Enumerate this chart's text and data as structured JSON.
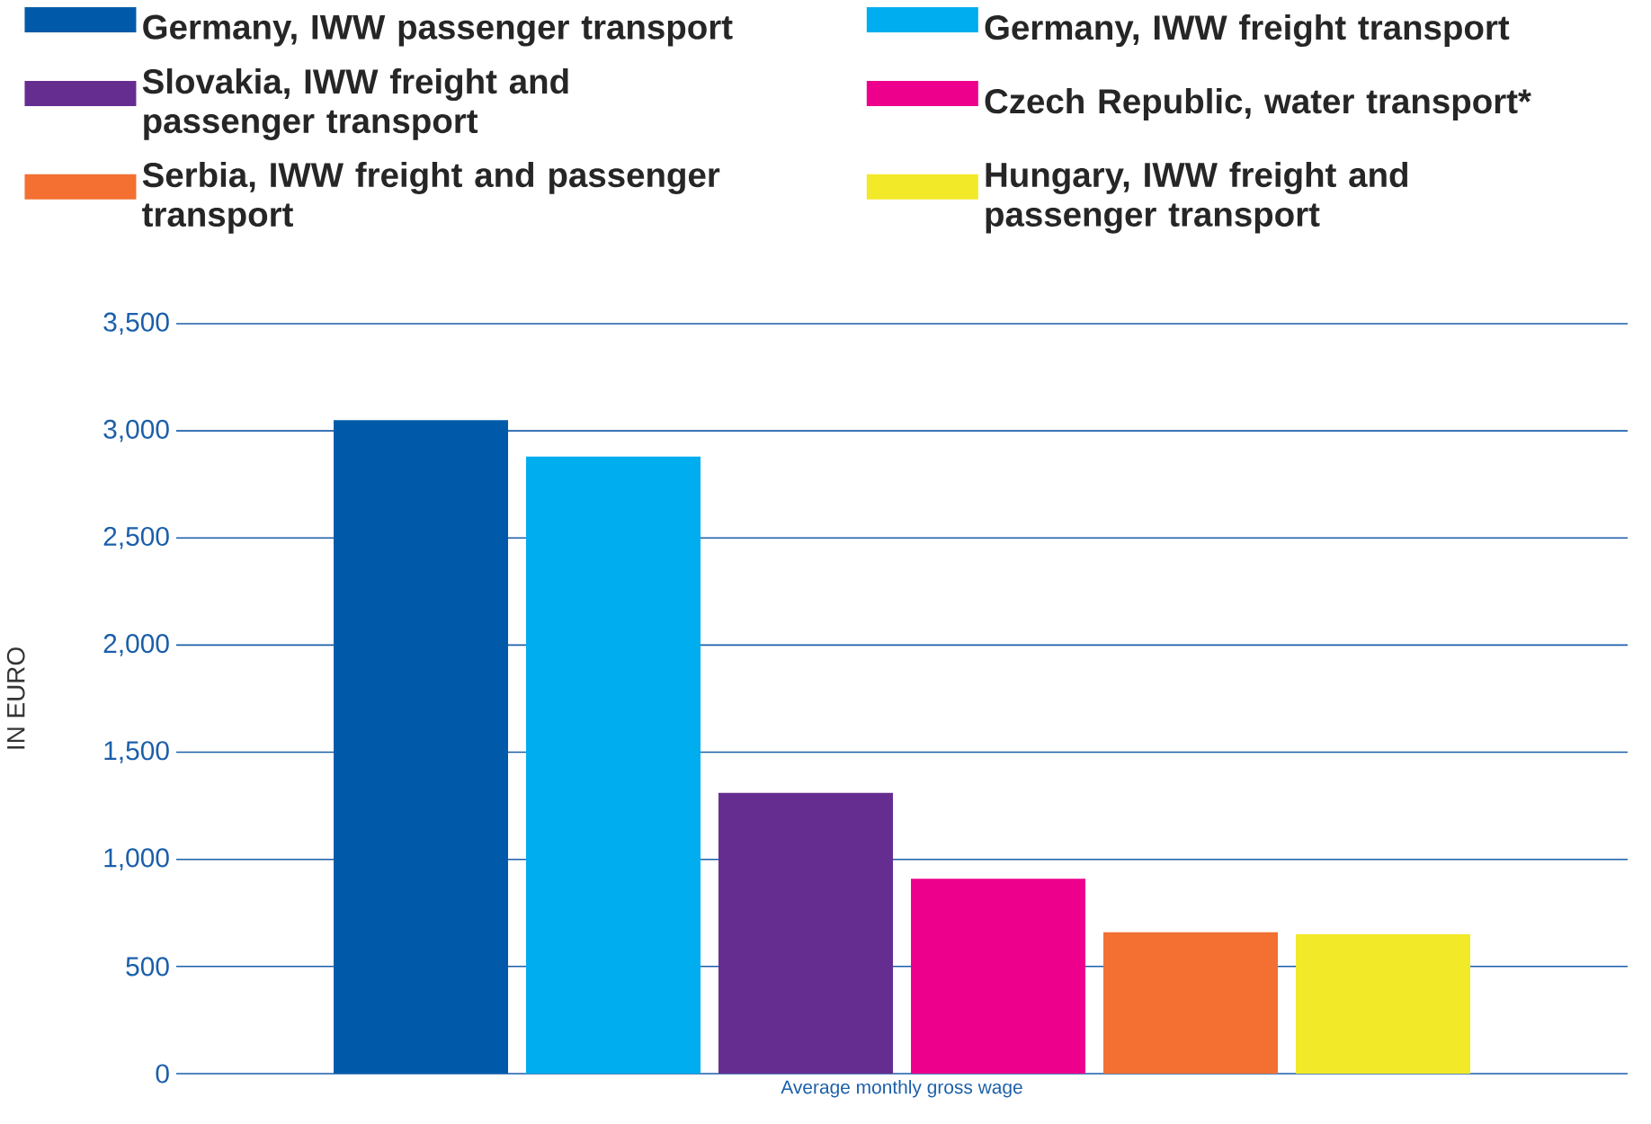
{
  "chart_data": {
    "type": "bar",
    "ylabel": "IN EURO",
    "categories": [
      "Average monthly gross wage"
    ],
    "series": [
      {
        "name": "Germany, IWW passenger transport",
        "color": "#005aa9",
        "values": [
          3050
        ]
      },
      {
        "name": "Germany, IWW freight transport",
        "color": "#00adef",
        "values": [
          2880
        ]
      },
      {
        "name": "Slovakia, IWW freight and passenger transport",
        "color": "#662d91",
        "values": [
          1310
        ]
      },
      {
        "name": "Czech Republic, water transport*",
        "color": "#ec008c",
        "values": [
          910
        ]
      },
      {
        "name": "Serbia, IWW freight and passenger transport",
        "color": "#f37032",
        "values": [
          660
        ]
      },
      {
        "name": "Hungary, IWW freight and passenger transport",
        "color": "#f2e928",
        "values": [
          650
        ]
      }
    ],
    "ylim": [
      0,
      3500
    ],
    "yticks": [
      0,
      500,
      {
        "value": 1000,
        "label": "1,000"
      },
      {
        "value": 1500,
        "label": "1,500"
      },
      {
        "value": 2000,
        "label": "2,000"
      },
      {
        "value": 2500,
        "label": "2,500"
      },
      {
        "value": 3000,
        "label": "3,000"
      },
      {
        "value": 3500,
        "label": "3,500"
      }
    ],
    "grid": "y",
    "legend": "top"
  }
}
